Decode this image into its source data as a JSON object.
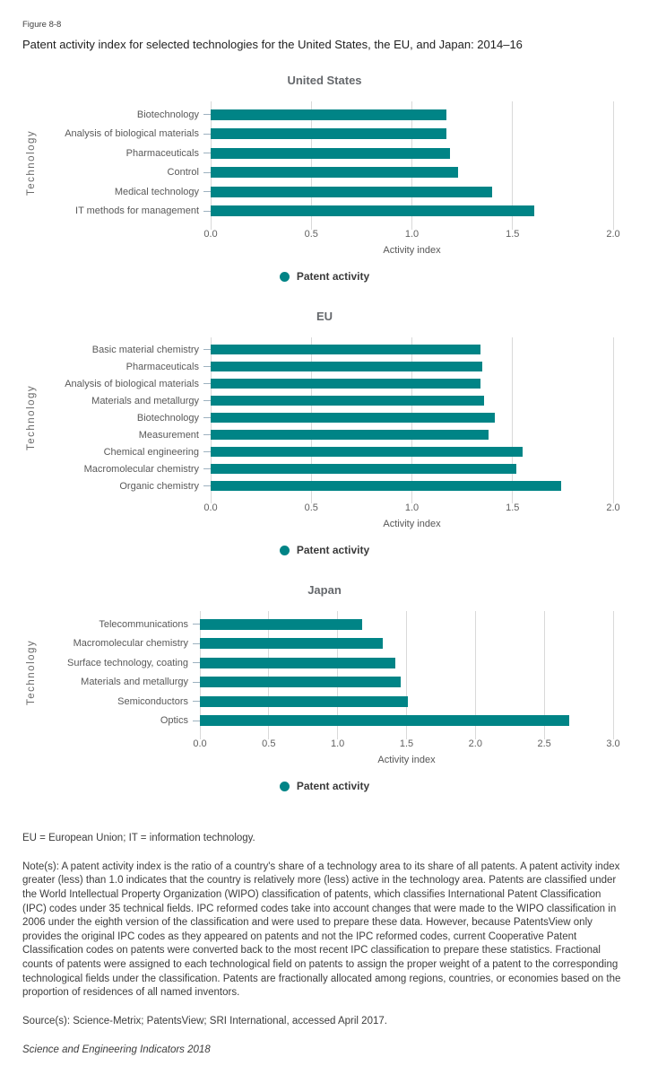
{
  "figure": {
    "label": "Figure 8-8",
    "title": "Patent activity index for selected technologies for the United States, the EU, and Japan: 2014–16"
  },
  "colors": {
    "bar": "#008486",
    "gridline": "#d9d9d9",
    "tick_dash": "#9db2c0"
  },
  "legend_label": "Patent activity",
  "chart_data": [
    {
      "type": "bar",
      "orientation": "horizontal",
      "title": "United States",
      "xlabel": "Activity index",
      "ylabel": "Technology",
      "xlim": [
        0,
        2
      ],
      "xticks": [
        0,
        0.5,
        1,
        1.5,
        2
      ],
      "xtick_labels": [
        "0.0",
        "0.5",
        "1.0",
        "1.5",
        "2.0"
      ],
      "grid": true,
      "legend": [
        "Patent activity"
      ],
      "legend_position": "bottom",
      "categories": [
        "Biotechnology",
        "Analysis of biological materials",
        "Pharmaceuticals",
        "Control",
        "Medical technology",
        "IT methods for management"
      ],
      "values": [
        1.17,
        1.17,
        1.19,
        1.23,
        1.4,
        1.61
      ]
    },
    {
      "type": "bar",
      "orientation": "horizontal",
      "title": "EU",
      "xlabel": "Activity index",
      "ylabel": "Technology",
      "xlim": [
        0,
        2
      ],
      "xticks": [
        0,
        0.5,
        1,
        1.5,
        2
      ],
      "xtick_labels": [
        "0.0",
        "0.5",
        "1.0",
        "1.5",
        "2.0"
      ],
      "grid": true,
      "legend": [
        "Patent activity"
      ],
      "legend_position": "bottom",
      "categories": [
        "Basic material chemistry",
        "Pharmaceuticals",
        "Analysis of biological materials",
        "Materials and metallurgy",
        "Biotechnology",
        "Measurement",
        "Chemical engineering",
        "Macromolecular chemistry",
        "Organic chemistry"
      ],
      "values": [
        1.34,
        1.35,
        1.34,
        1.36,
        1.41,
        1.38,
        1.55,
        1.52,
        1.74
      ]
    },
    {
      "type": "bar",
      "orientation": "horizontal",
      "title": "Japan",
      "xlabel": "Activity index",
      "ylabel": "Technology",
      "xlim": [
        0,
        3
      ],
      "xticks": [
        0,
        0.5,
        1,
        1.5,
        2,
        2.5,
        3
      ],
      "xtick_labels": [
        "0.0",
        "0.5",
        "1.0",
        "1.5",
        "2.0",
        "2.5",
        "3.0"
      ],
      "grid": true,
      "legend": [
        "Patent activity"
      ],
      "legend_position": "bottom",
      "categories": [
        "Telecommunications",
        "Macromolecular chemistry",
        "Surface technology, coating",
        "Materials and metallurgy",
        "Semiconductors",
        "Optics"
      ],
      "values": [
        1.18,
        1.33,
        1.42,
        1.46,
        1.51,
        2.68
      ]
    }
  ],
  "footnotes": {
    "abbreviations": "EU = European Union; IT = information technology.",
    "note": "Note(s): A patent activity index is the ratio of a country's share of a technology area to its share of all patents. A patent activity index greater (less) than 1.0 indicates that the country is relatively more (less) active in the technology area. Patents are classified under the World Intellectual Property Organization (WIPO) classification of patents, which classifies International Patent Classification (IPC) codes under 35 technical fields. IPC reformed codes take into account changes that were made to the WIPO classification in 2006 under the eighth version of the classification and were used to prepare these data. However, because PatentsView only provides the original IPC codes as they appeared on patents and not the IPC reformed codes, current Cooperative Patent Classification codes on patents were converted back to the most recent IPC classification to prepare these statistics. Fractional counts of patents were assigned to each technological field on patents to assign the proper weight of a patent to the corresponding technological fields under the classification. Patents are fractionally allocated among regions, countries, or economies based on the proportion of residences of all named inventors.",
    "source": "Source(s): Science-Metrix; PatentsView; SRI International, accessed April 2017.",
    "publication": "Science and Engineering Indicators 2018"
  }
}
